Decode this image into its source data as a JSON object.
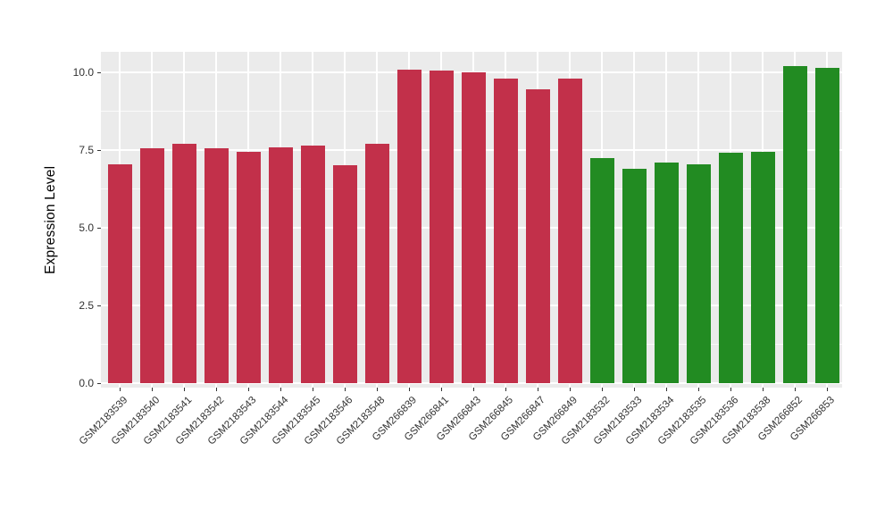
{
  "chart_data": {
    "type": "bar",
    "ylabel": "Expression Level",
    "xlabel": "",
    "categories": [
      "GSM2183539",
      "GSM2183540",
      "GSM2183541",
      "GSM2183542",
      "GSM2183543",
      "GSM2183544",
      "GSM2183545",
      "GSM2183546",
      "GSM2183548",
      "GSM266839",
      "GSM266841",
      "GSM266843",
      "GSM266845",
      "GSM266847",
      "GSM266849",
      "GSM2183532",
      "GSM2183533",
      "GSM2183534",
      "GSM2183535",
      "GSM2183536",
      "GSM2183538",
      "GSM266852",
      "GSM266853"
    ],
    "values": [
      7.05,
      7.55,
      7.7,
      7.55,
      7.45,
      7.6,
      7.65,
      7.0,
      7.7,
      10.1,
      10.05,
      10.0,
      9.8,
      9.45,
      9.8,
      7.25,
      6.9,
      7.1,
      7.05,
      7.4,
      7.45,
      10.2,
      10.15
    ],
    "groups": [
      "group1",
      "group1",
      "group1",
      "group1",
      "group1",
      "group1",
      "group1",
      "group1",
      "group1",
      "group1",
      "group1",
      "group1",
      "group1",
      "group1",
      "group1",
      "group2",
      "group2",
      "group2",
      "group2",
      "group2",
      "group2",
      "group2",
      "group2"
    ],
    "group_colors": {
      "group1": "#C2304A",
      "group2": "#228B22"
    },
    "y_tick_values": [
      0.0,
      2.5,
      5.0,
      7.5,
      10.0
    ],
    "y_tick_labels": [
      "0.0",
      "2.5",
      "5.0",
      "7.5",
      "10.0"
    ],
    "y_minor_tick_values": [
      1.25,
      3.75,
      6.25,
      8.75
    ],
    "ylim": [
      0,
      10.66
    ],
    "grid": true,
    "legend_position": "none"
  },
  "style": {
    "background": "#FFFFFF",
    "panel_background": "#EBEBEB",
    "grid_color": "#FFFFFF",
    "axis_text_color": "#323232",
    "axis_tick_color": "#333333"
  }
}
